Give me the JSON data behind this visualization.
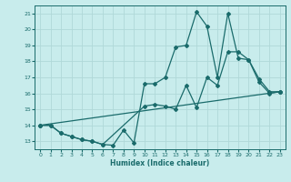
{
  "xlabel": "Humidex (Indice chaleur)",
  "bg_color": "#c8ecec",
  "grid_color": "#b0d8d8",
  "line_color": "#1a6b6b",
  "marker": "D",
  "markersize": 2.0,
  "linewidth": 0.9,
  "xlim": [
    -0.5,
    23.5
  ],
  "ylim": [
    12.5,
    21.5
  ],
  "yticks": [
    13,
    14,
    15,
    16,
    17,
    18,
    19,
    20,
    21
  ],
  "xticks": [
    0,
    1,
    2,
    3,
    4,
    5,
    6,
    7,
    8,
    9,
    10,
    11,
    12,
    13,
    14,
    15,
    16,
    17,
    18,
    19,
    20,
    21,
    22,
    23
  ],
  "line1_x": [
    0,
    1,
    2,
    3,
    4,
    5,
    6,
    7,
    8,
    9,
    10,
    11,
    12,
    13,
    14,
    15,
    16,
    17,
    18,
    19,
    20,
    21,
    22,
    23
  ],
  "line1_y": [
    14.0,
    14.0,
    13.5,
    13.3,
    13.1,
    13.0,
    12.8,
    12.75,
    13.7,
    12.9,
    16.6,
    16.6,
    17.0,
    18.9,
    19.0,
    21.1,
    20.2,
    17.0,
    21.0,
    18.2,
    18.1,
    16.9,
    16.1,
    16.1
  ],
  "line2_x": [
    0,
    1,
    2,
    3,
    4,
    5,
    6,
    10,
    11,
    12,
    13,
    14,
    15,
    16,
    17,
    18,
    19,
    20,
    21,
    22,
    23
  ],
  "line2_y": [
    14.0,
    14.0,
    13.5,
    13.3,
    13.1,
    13.0,
    12.8,
    15.2,
    15.3,
    15.2,
    15.0,
    16.5,
    15.1,
    17.0,
    16.5,
    18.6,
    18.6,
    18.1,
    16.7,
    16.0,
    16.1
  ],
  "line3_x": [
    0,
    23
  ],
  "line3_y": [
    14.0,
    16.1
  ]
}
